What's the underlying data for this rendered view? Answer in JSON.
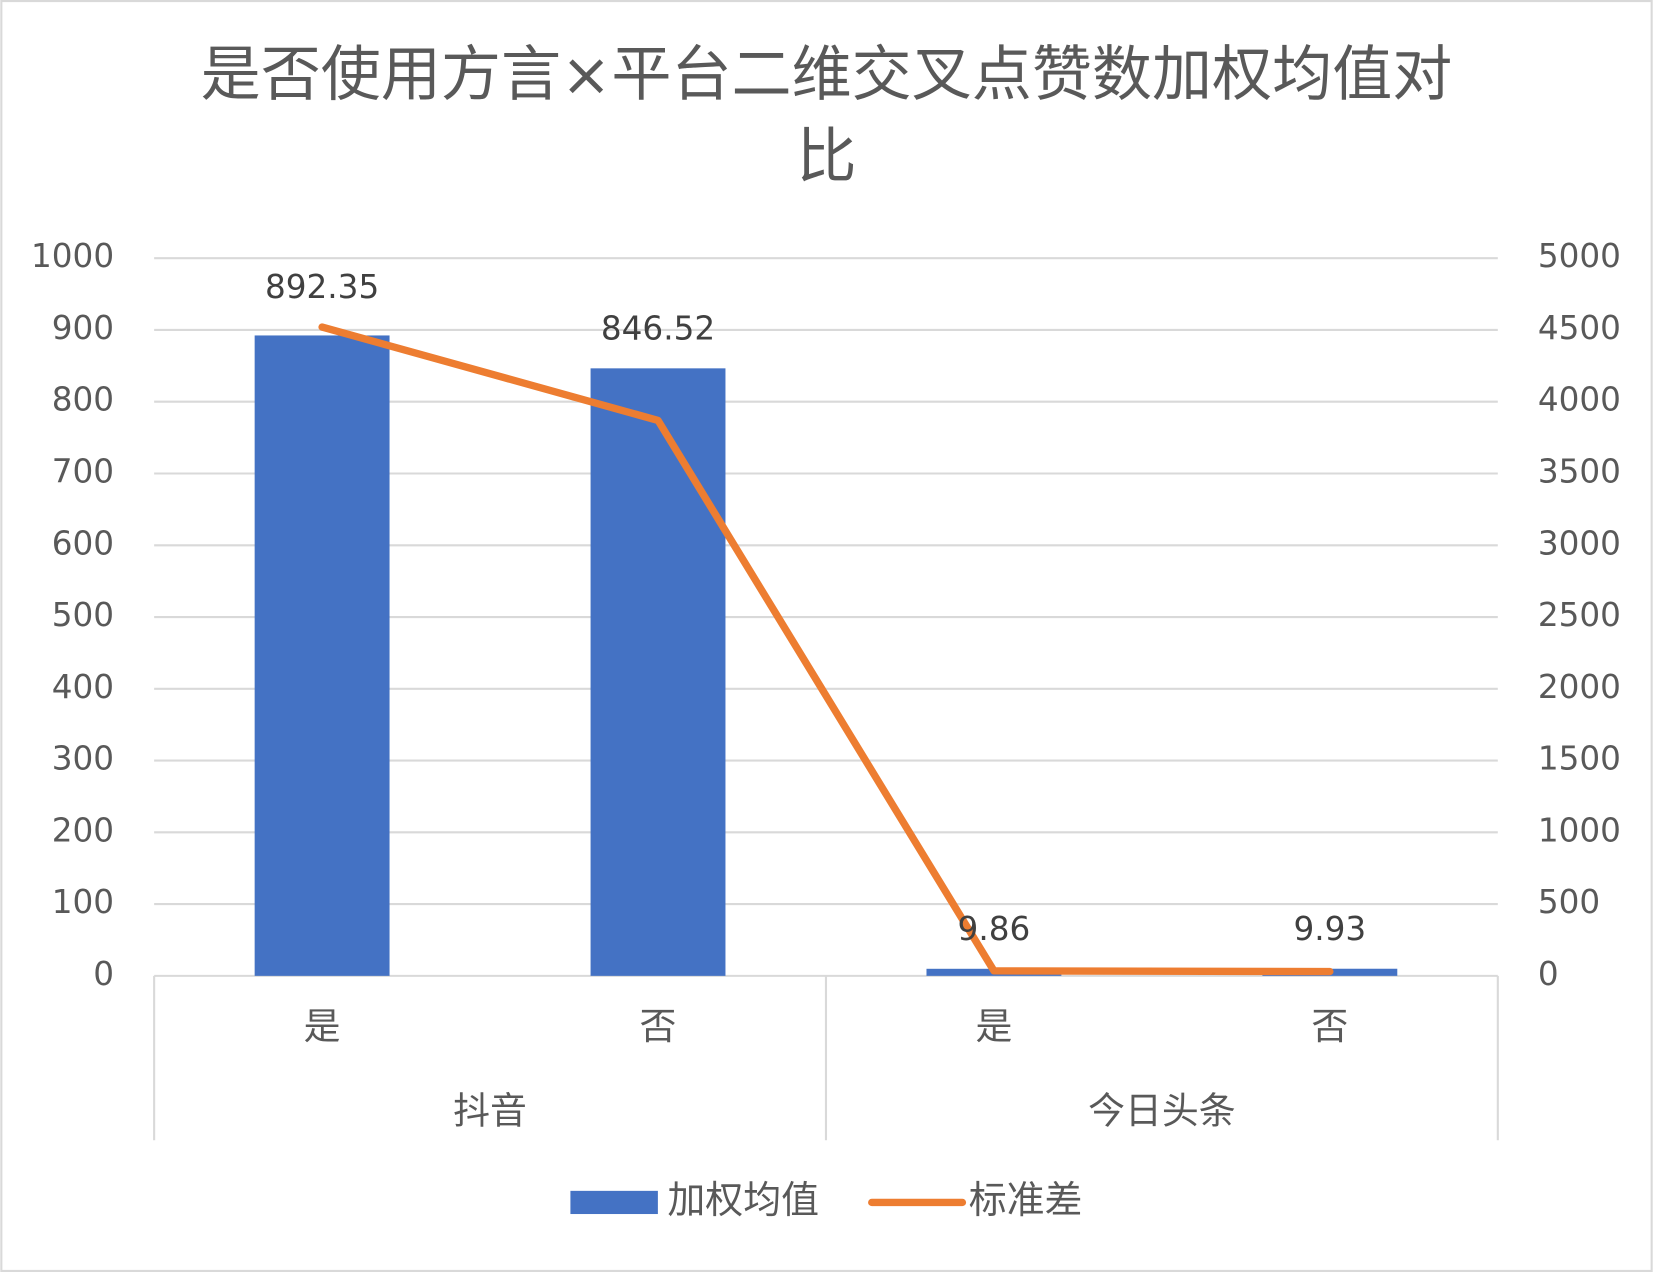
{
  "chart_data": {
    "type": "bar_line",
    "title": "是否使用方言×平台二维交叉点赞数加权均值对比",
    "groups": [
      {
        "name": "抖音",
        "categories": [
          "是",
          "否"
        ]
      },
      {
        "name": "今日头条",
        "categories": [
          "是",
          "否"
        ]
      }
    ],
    "series": [
      {
        "name": "加权均值",
        "type": "bar",
        "color": "#4472c4",
        "values": [
          892.35,
          846.52,
          9.86,
          9.93
        ],
        "data_labels": true
      },
      {
        "name": "标准差",
        "type": "line",
        "axis": "y2",
        "color": "#ed7d31",
        "values": [
          4520,
          3870,
          35,
          30
        ]
      }
    ],
    "ylim": [
      0,
      1000
    ],
    "yticks": [
      0,
      100,
      200,
      300,
      400,
      500,
      600,
      700,
      800,
      900,
      1000
    ],
    "y2lim": [
      0,
      5000
    ],
    "y2ticks": [
      0,
      500,
      1000,
      1500,
      2000,
      2500,
      3000,
      3500,
      4000,
      4500,
      5000
    ],
    "grid": true,
    "legend": "bottom"
  }
}
